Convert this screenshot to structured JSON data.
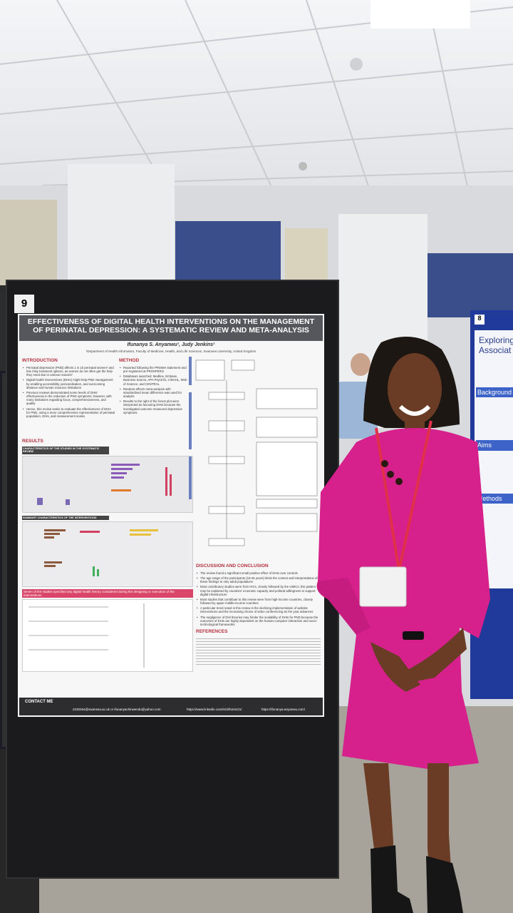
{
  "poster": {
    "number": "9",
    "title": "EFFECTIVENESS OF DIGITAL HEALTH INTERVENTIONS ON THE MANAGEMENT OF PERINATAL DEPRESSION: A SYSTEMATIC REVIEW AND META-ANALYSIS",
    "authors": "Ifunanya S. Anyanwu¹, Judy Jenkins¹",
    "affiliation": "¹Department of Health Informatics, Faculty of Medicine, Health, and Life Sciences, Swansea University, United Kingdom",
    "introduction": {
      "heading": "INTRODUCTION",
      "bullets": [
        "Perinatal depression (PND) affects 1 in 10 perinatal women¹ and has risky treatment options, as women do not often get the help they need due to various reasons²",
        "Digital health interventions (DHIs) might help PND management by enabling accessibility, personalisation, and overcoming distance and human resource limitations",
        "Previous reviews demonstrated some levels of DHIs' effectiveness in the reduction of PND symptoms; however, with many limitations regarding focus, comprehensiveness, and quality",
        "Hence, this review seeks to evaluate the effectiveness of DHIs for PND, using a more comprehensive representation of perinatal population, DHIs, and measurement scales"
      ]
    },
    "method": {
      "heading": "METHOD",
      "bullets": [
        "Reported following the PRISMA statement and pre-registered at PROSPERO",
        "Databases searched: Medline, Embase, Business Source, APA PsycInfo, CINAHL, Web of Science, and CENTRAL",
        "Random-effects meta-analysis with standardised mean difference was used for analysis",
        "Results to the right of the forest plot were interpreted as favouring DHIs because the investigated outcome measured depressive symptoms"
      ]
    },
    "results": {
      "heading": "RESULTS",
      "characteristics": "CHARACTERISTICS OF THE STUDIES IN THE SYSTEMATIC REVIEW",
      "interventions": "SUMMARY CHARACTERISTICS OF THE INTERVENTIONS",
      "highlight": "Seven of the studies specified any digital health theory considered during the designing or execution of the interventions"
    },
    "discussion": {
      "heading": "DISCUSSION AND CONCLUSION",
      "bullets": [
        "The review found a significant small positive effect of DHIs over controls",
        "The age range of the participants (18-45 years) limits the context and interpretations of these findings to only adult populations",
        "Most contributory studies were from HICs, closely followed by the UMICs; this pattern may be explained by countries' economic capacity and political willingness to support digital infrastructure",
        "Most studies that contribute to this review were from high-income countries, closely followed by upper-middle-income countries",
        "A particular trend noted in this review is the declining implementation of website interventions and the increasing choice of video conferencing as the year advances",
        "The negligence of DHI theories may hinder the scalability of DHIs for PND because the outcomes of DHIs are highly dependent on the human-computer interaction and socio-technological frameworks"
      ]
    },
    "references": {
      "heading": "REFERENCES"
    },
    "contact": {
      "heading": "CONTACT ME",
      "email": "2230264@swansea.ac.uk or ifunanyachinwendu@yahoo.com",
      "linkedin": "https://www.linkedin.com/in/drifunmi21/",
      "website": "https://ifunanya-anyanwu.com/"
    }
  },
  "neighbor_poster": {
    "number": "8",
    "title": "Exploring Associat",
    "sections": [
      "Background",
      "Aims",
      "Methods"
    ]
  }
}
